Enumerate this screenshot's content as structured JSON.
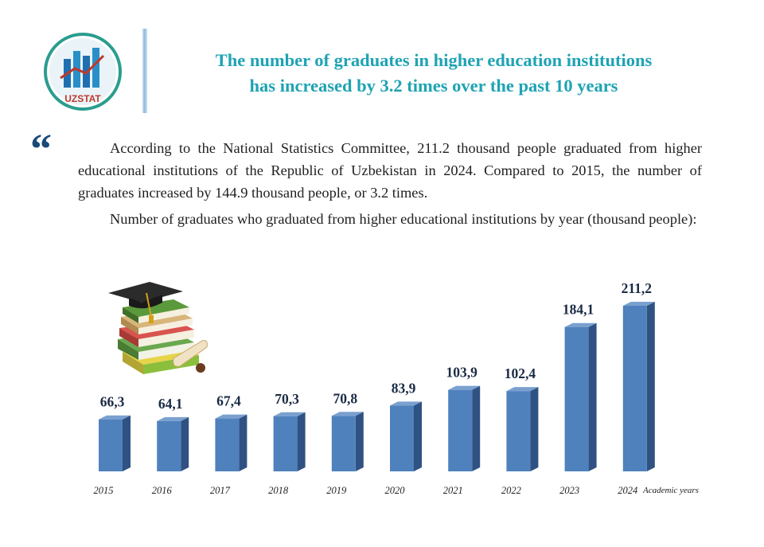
{
  "header": {
    "logo_text": "UZSTAT",
    "title_line1": "The number of graduates in higher education institutions",
    "title_line2": "has increased by 3.2 times over the past 10 years"
  },
  "body": {
    "quote_mark": "“",
    "paragraph1": "According to the National Statistics Committee, 211.2 thousand people graduated from higher educational institutions of the Republic of Uzbekistan in 2024. Compared to 2015,  the number of graduates increased by 144.9 thousand people, or 3.2 times.",
    "paragraph2": "Number of graduates who graduated from higher educational institutions by year (thousand people):"
  },
  "colors": {
    "title": "#1ea3b3",
    "bar_front": "#4f81bd",
    "bar_side": "#2f5283",
    "bar_top": "#7aa0cf"
  },
  "chart_data": {
    "type": "bar",
    "categories": [
      "2015",
      "2016",
      "2017",
      "2018",
      "2019",
      "2020",
      "2021",
      "2022",
      "2023",
      "2024"
    ],
    "values": [
      66.3,
      64.1,
      67.4,
      70.3,
      70.8,
      83.9,
      103.9,
      102.4,
      184.1,
      211.2
    ],
    "value_labels": [
      "66,3",
      "64,1",
      "67,4",
      "70,3",
      "70,8",
      "83,9",
      "103,9",
      "102,4",
      "184,1",
      "211,2"
    ],
    "xlabel": "Academic years",
    "title": "",
    "ylabel": "",
    "grid": false,
    "ylim": [
      0,
      211.2
    ]
  }
}
